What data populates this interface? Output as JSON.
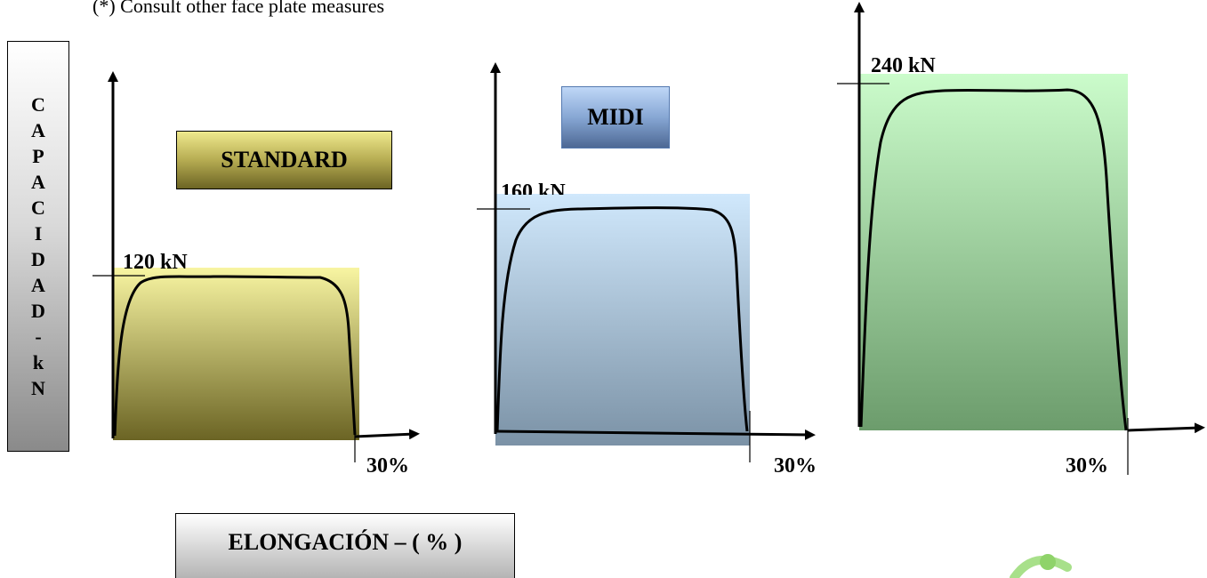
{
  "note": "(*) Consult other face plate measures",
  "y_axis_label_letters": [
    "C",
    "A",
    "P",
    "A",
    "C",
    "I",
    "D",
    "A",
    "D",
    "-",
    "k",
    "N"
  ],
  "x_axis_label": "ELONGACIÓN – ( % )",
  "panels": [
    {
      "name": "STANDARD",
      "capacity_label": "120 kN",
      "elongation_label": "30%",
      "fill_top": "#f7f4a0",
      "fill_bottom": "#6b6424"
    },
    {
      "name": "MIDI",
      "capacity_label": "160 kN",
      "elongation_label": "30%",
      "fill_top": "#cfe7fb",
      "fill_bottom": "#7c93a6"
    },
    {
      "name": "",
      "capacity_label": "240 kN",
      "elongation_label": "30%",
      "fill_top": "#c9fbc9",
      "fill_bottom": "#6f9e6f"
    }
  ]
}
